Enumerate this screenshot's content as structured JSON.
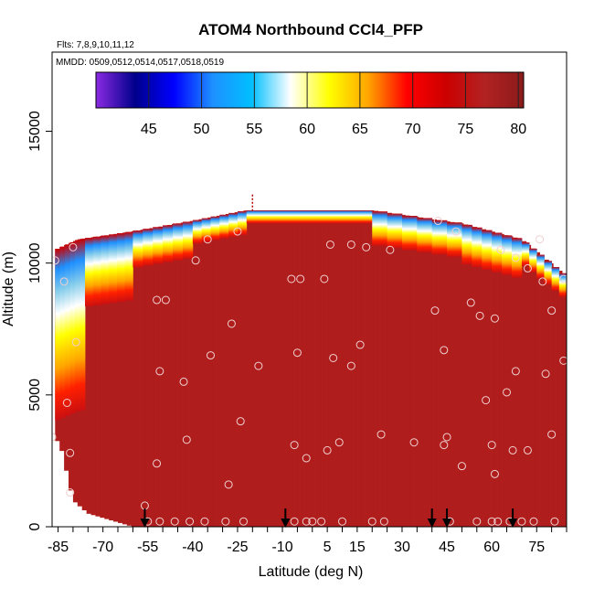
{
  "chart_data": {
    "type": "heatmap",
    "title": "ATOM4 Northbound CCl4_PFP",
    "flights_label": "Flts: 7,8,9,10,11,12",
    "dates_label": "MMDD: 0509,0512,0514,0517,0518,0519",
    "xlabel": "Latitude (deg N)",
    "ylabel": "Altitude (m)",
    "xlim": [
      -87,
      85
    ],
    "ylim": [
      0,
      18000
    ],
    "x_ticks": [
      -85,
      -70,
      -55,
      -40,
      -25,
      -10,
      5,
      15,
      30,
      45,
      60,
      75
    ],
    "y_ticks": [
      0,
      5000,
      10000,
      15000
    ],
    "colorbar": {
      "min": 40,
      "max": 80.5,
      "ticks": [
        45,
        50,
        55,
        60,
        65,
        70,
        75,
        80
      ],
      "colors": [
        "#8b2be2",
        "#00008b",
        "#0000ff",
        "#1e90ff",
        "#00bfff",
        "#ffffff",
        "#ffff00",
        "#ffa500",
        "#ff0000",
        "#cc0000",
        "#b22222",
        "#8b1a1a"
      ]
    },
    "ceiling": [
      [
        -86,
        10500
      ],
      [
        -78,
        10900
      ],
      [
        -60,
        11200
      ],
      [
        -40,
        11600
      ],
      [
        -22,
        12000
      ],
      [
        20,
        12000
      ],
      [
        50,
        11500
      ],
      [
        70,
        10900
      ],
      [
        85,
        9500
      ]
    ],
    "floor": [
      [
        -86,
        3400
      ],
      [
        -84,
        3000
      ],
      [
        -82,
        2000
      ],
      [
        -80,
        1000
      ],
      [
        -75,
        500
      ],
      [
        -60,
        0
      ],
      [
        84,
        0
      ]
    ],
    "gradient_bands": [
      {
        "x0": -86,
        "x1": -76,
        "top": [
          10500,
          10900
        ],
        "depth": 6500
      },
      {
        "x0": -76,
        "x1": -60,
        "top": [
          10900,
          11200
        ],
        "depth": 2600
      },
      {
        "x0": -60,
        "x1": -40,
        "top": [
          11200,
          11600
        ],
        "depth": 1400
      },
      {
        "x0": -40,
        "x1": -22,
        "top": [
          11600,
          12000
        ],
        "depth": 900
      },
      {
        "x0": -22,
        "x1": 20,
        "top": [
          12000,
          12000
        ],
        "depth": 500
      },
      {
        "x0": 20,
        "x1": 50,
        "top": [
          12000,
          11500
        ],
        "depth": 1300
      },
      {
        "x0": 50,
        "x1": 70,
        "top": [
          11500,
          10900
        ],
        "depth": 1500
      },
      {
        "x0": 70,
        "x1": 85,
        "top": [
          10900,
          9500
        ],
        "depth": 900
      }
    ],
    "samples": [
      [
        -86,
        10100
      ],
      [
        -83,
        9300
      ],
      [
        -80,
        10600
      ],
      [
        -79,
        7000
      ],
      [
        -82,
        4700
      ],
      [
        -81,
        2800
      ],
      [
        -81,
        1300
      ],
      [
        -87,
        3400
      ],
      [
        -56,
        800
      ],
      [
        -55,
        200
      ],
      [
        -51,
        200
      ],
      [
        -46,
        200
      ],
      [
        -41,
        200
      ],
      [
        -36,
        200
      ],
      [
        -29,
        200
      ],
      [
        -23,
        200
      ],
      [
        -52,
        8600
      ],
      [
        -49,
        8600
      ],
      [
        -51,
        5900
      ],
      [
        -52,
        2400
      ],
      [
        -43,
        5500
      ],
      [
        -42,
        3300
      ],
      [
        -39,
        10100
      ],
      [
        -35,
        10900
      ],
      [
        -34,
        6500
      ],
      [
        -27,
        7700
      ],
      [
        -25,
        11200
      ],
      [
        -24,
        4000
      ],
      [
        -18,
        6100
      ],
      [
        -28,
        1600
      ],
      [
        -7,
        9400
      ],
      [
        -4,
        9400
      ],
      [
        -6,
        3100
      ],
      [
        -6,
        200
      ],
      [
        -2,
        200
      ],
      [
        3,
        200
      ],
      [
        -2,
        2600
      ],
      [
        -5,
        6600
      ],
      [
        0,
        200
      ],
      [
        4,
        9400
      ],
      [
        6,
        10700
      ],
      [
        5,
        2900
      ],
      [
        7,
        6400
      ],
      [
        9,
        3200
      ],
      [
        10,
        200
      ],
      [
        13,
        10700
      ],
      [
        13,
        6100
      ],
      [
        16,
        6900
      ],
      [
        18,
        10600
      ],
      [
        20,
        200
      ],
      [
        23,
        3500
      ],
      [
        24,
        200
      ],
      [
        26,
        10500
      ],
      [
        34,
        3200
      ],
      [
        42,
        11600
      ],
      [
        41,
        8200
      ],
      [
        44,
        6700
      ],
      [
        45,
        3400
      ],
      [
        44,
        3100
      ],
      [
        46,
        200
      ],
      [
        48,
        11200
      ],
      [
        50,
        2300
      ],
      [
        53,
        8500
      ],
      [
        55,
        200
      ],
      [
        56,
        8000
      ],
      [
        58,
        4800
      ],
      [
        60,
        3100
      ],
      [
        60,
        200
      ],
      [
        61,
        7900
      ],
      [
        61,
        2000
      ],
      [
        62,
        200
      ],
      [
        63,
        10500
      ],
      [
        65,
        5100
      ],
      [
        66,
        200
      ],
      [
        67,
        2900
      ],
      [
        68,
        10200
      ],
      [
        68,
        5900
      ],
      [
        70,
        200
      ],
      [
        72,
        9800
      ],
      [
        72,
        2900
      ],
      [
        74,
        200
      ],
      [
        76,
        10900
      ],
      [
        77,
        9300
      ],
      [
        78,
        5800
      ],
      [
        80,
        8200
      ],
      [
        80,
        3500
      ],
      [
        81,
        200
      ],
      [
        84,
        9400
      ],
      [
        84,
        6300
      ]
    ],
    "flight_markers": [
      -56,
      -9,
      40,
      45,
      67
    ],
    "max_altitude_marker": [
      -20,
      12600
    ]
  }
}
